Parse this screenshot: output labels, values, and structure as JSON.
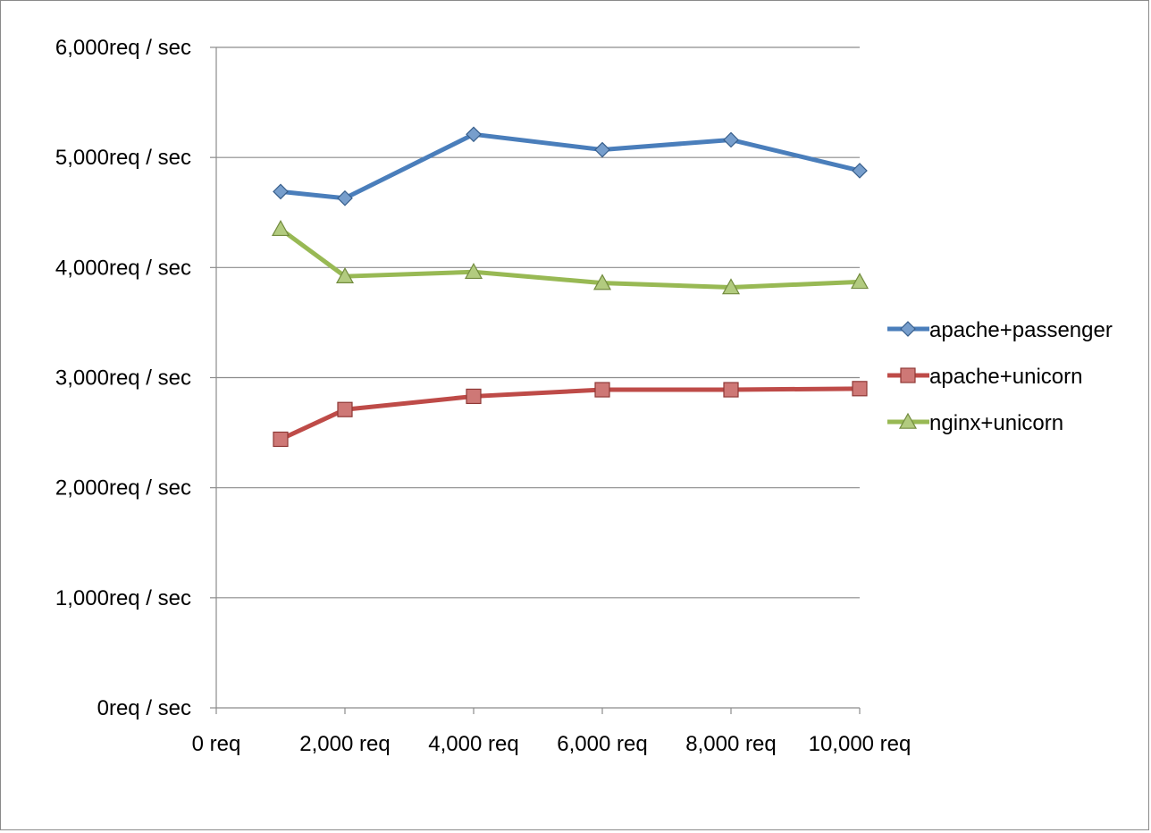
{
  "chart_data": {
    "type": "line",
    "title": "",
    "xlabel": "",
    "ylabel": "",
    "x": [
      1000,
      2000,
      4000,
      6000,
      8000,
      10000
    ],
    "xlim": [
      0,
      10000
    ],
    "ylim": [
      0,
      6000
    ],
    "x_ticks": [
      {
        "value": 0,
        "label": "0 req"
      },
      {
        "value": 2000,
        "label": "2,000 req"
      },
      {
        "value": 4000,
        "label": "4,000 req"
      },
      {
        "value": 6000,
        "label": "6,000 req"
      },
      {
        "value": 8000,
        "label": "8,000 req"
      },
      {
        "value": 10000,
        "label": "10,000 req"
      }
    ],
    "y_ticks": [
      {
        "value": 0,
        "label": "0req / sec"
      },
      {
        "value": 1000,
        "label": "1,000req / sec"
      },
      {
        "value": 2000,
        "label": "2,000req / sec"
      },
      {
        "value": 3000,
        "label": "3,000req / sec"
      },
      {
        "value": 4000,
        "label": "4,000req / sec"
      },
      {
        "value": 5000,
        "label": "5,000req / sec"
      },
      {
        "value": 6000,
        "label": "6,000req / sec"
      }
    ],
    "grid": "horizontal",
    "legend_position": "right",
    "series": [
      {
        "name": "apache+passenger",
        "color": "#4a7ebb",
        "marker": "diamond",
        "values": [
          4690,
          4630,
          5210,
          5070,
          5160,
          4880
        ]
      },
      {
        "name": "apache+unicorn",
        "color": "#be4b48",
        "marker": "square",
        "values": [
          2440,
          2710,
          2830,
          2890,
          2890,
          2900
        ]
      },
      {
        "name": "nginx+unicorn",
        "color": "#98b954",
        "marker": "triangle",
        "values": [
          4350,
          3920,
          3960,
          3860,
          3820,
          3870
        ]
      }
    ]
  }
}
